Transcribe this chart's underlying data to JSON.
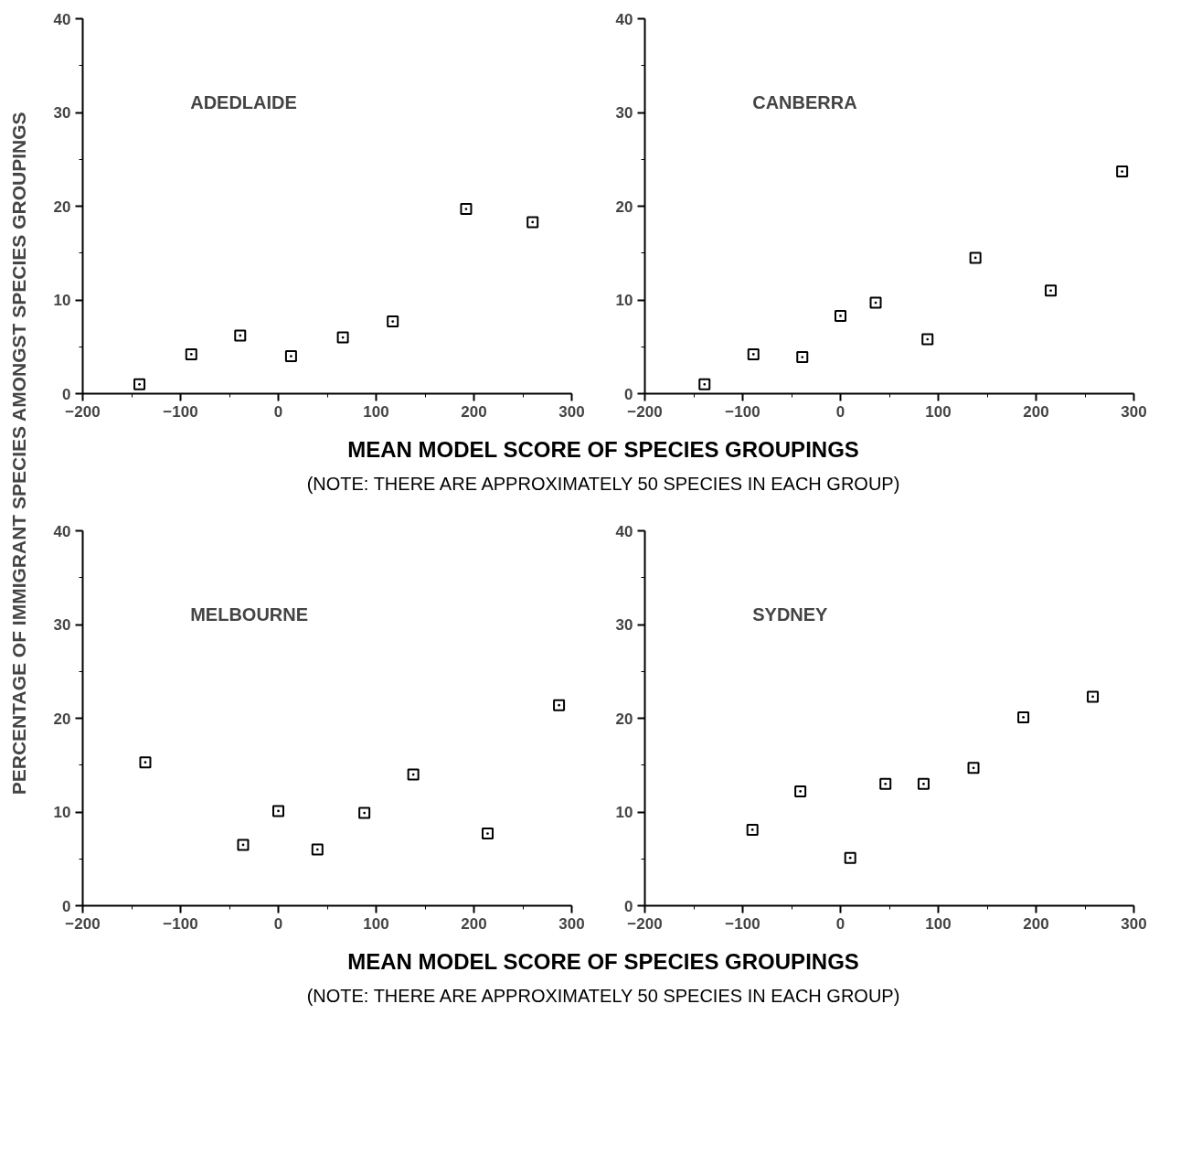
{
  "chart_data": [
    {
      "type": "scatter",
      "title": "ADEDLAIDE",
      "ylabel": "PERCENTAGE OF IMMIGRANT SPECIES AMONGST SPECIES GROUPINGS",
      "xlabel": "MEAN MODEL SCORE OF SPECIES GROUPINGS",
      "annotations": [
        "(NOTE: THERE ARE APPROXIMATELY 50 SPECIES IN EACH GROUP)"
      ],
      "marker": "square",
      "x": [
        -142,
        -89,
        -39,
        13,
        66,
        117,
        192,
        260
      ],
      "values": [
        1.0,
        4.2,
        6.2,
        4.0,
        6.0,
        7.7,
        19.7,
        18.3
      ],
      "color": "#000000",
      "xlim": [
        -200,
        300
      ],
      "xticks": [
        -200,
        -100,
        0,
        100,
        200,
        300
      ],
      "ylim": [
        0,
        40
      ],
      "yticks": [
        0,
        10,
        20,
        30,
        40
      ]
    },
    {
      "type": "scatter",
      "title": "CANBERRA",
      "marker": "square",
      "x": [
        -139,
        -89,
        -39,
        0,
        36,
        89,
        138,
        215,
        288
      ],
      "values": [
        1.0,
        4.2,
        3.9,
        8.3,
        9.7,
        5.8,
        14.5,
        11.0,
        23.7
      ],
      "color": "#000000",
      "xlim": [
        -200,
        300
      ],
      "xticks": [
        -200,
        -100,
        0,
        100,
        200,
        300
      ],
      "ylim": [
        0,
        40
      ],
      "yticks": [
        0,
        10,
        20,
        30,
        40
      ]
    },
    {
      "type": "scatter",
      "title": "MELBOURNE",
      "xlabel": "MEAN MODEL SCORE OF SPECIES GROUPINGS",
      "annotations": [
        "(NOTE: THERE ARE APPROXIMATELY 50 SPECIES IN EACH GROUP)"
      ],
      "marker": "square",
      "x": [
        -136,
        -36,
        0,
        40,
        88,
        138,
        214,
        287
      ],
      "values": [
        15.3,
        6.5,
        10.1,
        6.0,
        9.9,
        14.0,
        7.7,
        21.4
      ],
      "color": "#000000",
      "xlim": [
        -200,
        300
      ],
      "xticks": [
        -200,
        -100,
        0,
        100,
        200,
        300
      ],
      "ylim": [
        0,
        40
      ],
      "yticks": [
        0,
        10,
        20,
        30,
        40
      ]
    },
    {
      "type": "scatter",
      "title": "SYDNEY",
      "marker": "square",
      "x": [
        -90,
        -41,
        10,
        46,
        85,
        136,
        187,
        258
      ],
      "values": [
        8.1,
        12.2,
        5.1,
        13.0,
        13.0,
        14.7,
        20.1,
        22.3
      ],
      "color": "#000000",
      "xlim": [
        -200,
        300
      ],
      "xticks": [
        -200,
        -100,
        0,
        100,
        200,
        300
      ],
      "ylim": [
        0,
        40
      ],
      "yticks": [
        0,
        10,
        20,
        30,
        40
      ]
    }
  ]
}
